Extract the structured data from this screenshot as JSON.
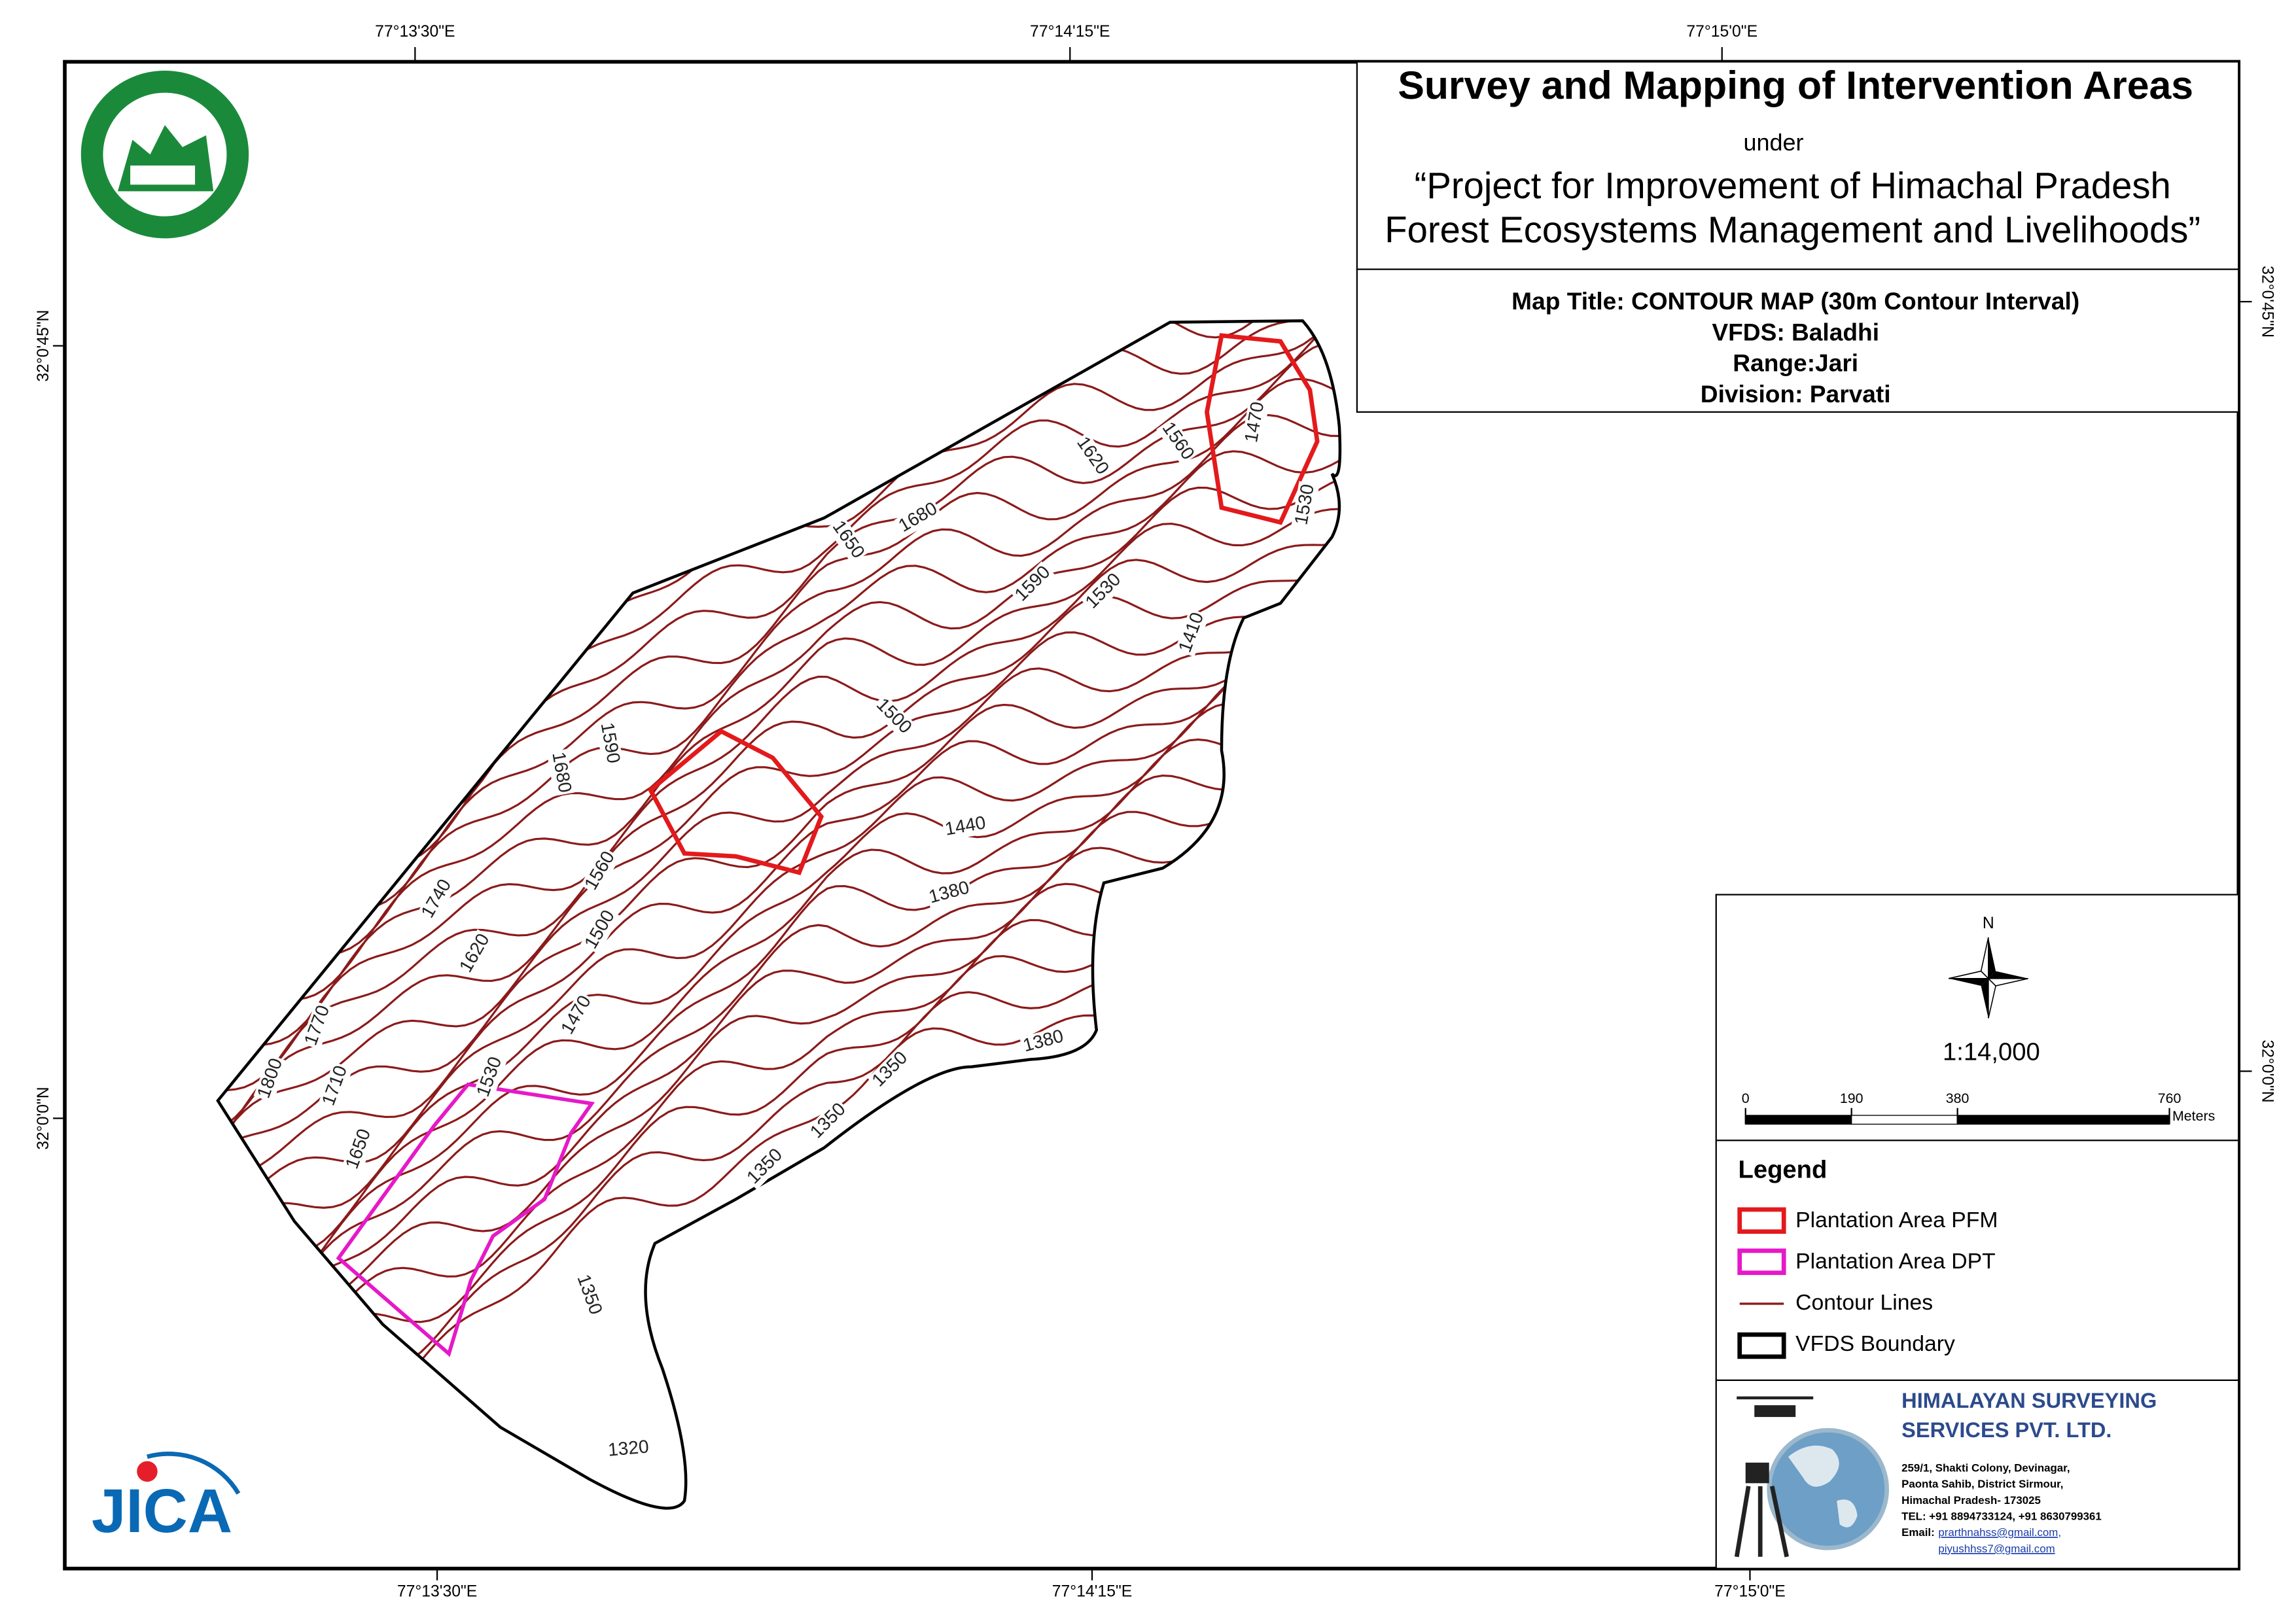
{
  "coordinates": {
    "top": [
      "77°13'30\"E",
      "77°14'15\"E",
      "77°15'0\"E"
    ],
    "bottom": [
      "77°13'30\"E",
      "77°14'15\"E",
      "77°15'0\"E"
    ],
    "left": [
      "32°0'45\"N",
      "32°0'0\"N"
    ],
    "right": [
      "32°0'45\"N",
      "32°0'0\"N"
    ]
  },
  "title": {
    "heading": "Survey and Mapping of Intervention Areas",
    "under": "under",
    "project_line1": "“Project for Improvement of Himachal Pradesh",
    "project_line2": "Forest Ecosystems Management and Livelihoods”"
  },
  "map_info": {
    "map_title": "Map Title: CONTOUR MAP (30m Contour Interval)",
    "vfds": "VFDS: Baladhi",
    "range": "Range:Jari",
    "division": "Division: Parvati"
  },
  "north": "N",
  "scale": "1:14,000",
  "scale_bar": {
    "ticks": [
      0,
      190,
      380,
      760
    ],
    "unit": "Meters"
  },
  "legend": {
    "title": "Legend",
    "items": [
      "Plantation Area PFM",
      "Plantation Area DPT",
      "Contour Lines",
      "VFDS Boundary"
    ]
  },
  "contour_labels": [
    1470,
    1560,
    1620,
    1680,
    1650,
    1530,
    1590,
    1530,
    1410,
    1500,
    1440,
    1380,
    1590,
    1680,
    1560,
    1740,
    1500,
    1620,
    1470,
    1770,
    1530,
    1710,
    1800,
    1650,
    1380,
    1350,
    1350,
    1350,
    1350,
    1320
  ],
  "company": {
    "name_line1": "HIMALAYAN SURVEYING",
    "name_line2": "SERVICES PVT. LTD.",
    "address": [
      "259/1, Shakti Colony, Devinagar,",
      "Paonta Sahib, District Sirmour,",
      "Himachal Pradesh- 173025",
      "TEL: +91 8894733124, +91 8630799361"
    ],
    "email_label": "Email:",
    "emails": [
      "prarthnahss@gmail.com,",
      "piyushhss7@gmail.com"
    ]
  },
  "jica": "JICA"
}
